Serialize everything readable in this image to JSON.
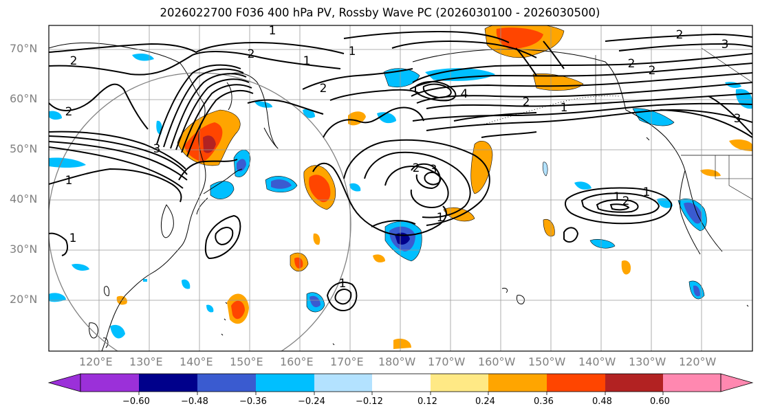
{
  "title": "2026022700 F036 400 hPa PV, Rossby Wave PC (2026030100 - 2026030500)",
  "lat_labels": [
    "70°N",
    "60°N",
    "50°N",
    "40°N",
    "30°N",
    "20°N"
  ],
  "lon_labels": [
    "120°E",
    "130°E",
    "140°E",
    "150°E",
    "160°E",
    "170°E",
    "180°W",
    "170°W",
    "160°W",
    "150°W",
    "140°W",
    "130°W",
    "120°W"
  ],
  "colorbar": {
    "colors": [
      "#9b30d9",
      "#00008b",
      "#3a5bd0",
      "#00bfff",
      "#b3e2ff",
      "#ffffff",
      "#ffe985",
      "#ffa500",
      "#ff4500",
      "#b22222",
      "#ff88b0"
    ],
    "tick_labels": [
      "−0.60",
      "−0.48",
      "−0.36",
      "−0.24",
      "−0.12",
      "0.12",
      "0.24",
      "0.36",
      "0.48",
      "0.60"
    ]
  },
  "pv_contour_labels": [
    "2",
    "1",
    "2",
    "1",
    "2",
    "3",
    "1",
    "2",
    "1",
    "1",
    "2",
    "3",
    "1",
    "2",
    "1",
    "1",
    "4",
    "2",
    "1",
    "2",
    "3",
    "2",
    "1",
    "2",
    "3"
  ],
  "colors": {
    "land_outline": "#000000",
    "grid": "#999999",
    "label_gray": "#808080"
  }
}
